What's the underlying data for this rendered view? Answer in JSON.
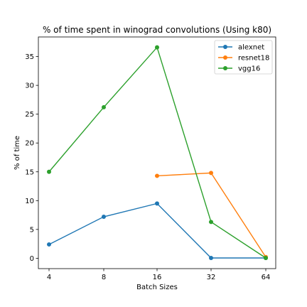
{
  "chart_data": {
    "type": "line",
    "title": "% of time spent in winograd convolutions (Using k80)",
    "xlabel": "Batch Sizes",
    "ylabel": "% of time",
    "categories": [
      "4",
      "8",
      "16",
      "32",
      "64"
    ],
    "yticks": [
      0,
      5,
      10,
      15,
      20,
      25,
      30,
      35
    ],
    "ylim": [
      -1.8,
      38.4
    ],
    "grid": false,
    "legend_position": "top-right",
    "series": [
      {
        "name": "alexnet",
        "color": "#1f77b4",
        "values": [
          2.4,
          7.2,
          9.5,
          0.05,
          0.05
        ]
      },
      {
        "name": "resnet18",
        "color": "#ff7f0e",
        "values": [
          null,
          null,
          14.3,
          14.8,
          0.2
        ]
      },
      {
        "name": "vgg16",
        "color": "#2ca02c",
        "values": [
          15.0,
          26.2,
          36.6,
          6.3,
          0.05
        ]
      }
    ]
  }
}
